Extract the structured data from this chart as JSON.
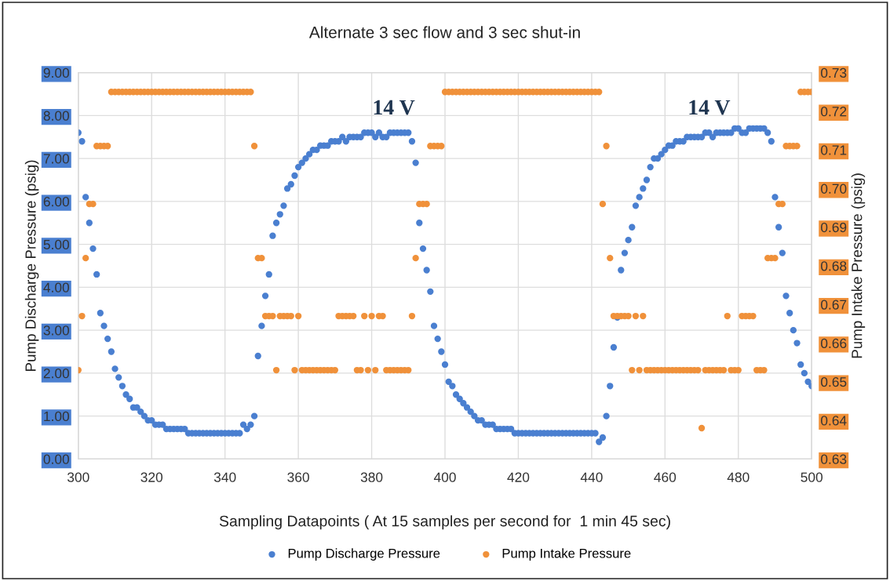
{
  "chart_data": {
    "type": "scatter",
    "title": "Alternate 3 sec flow and 3 sec shut-in",
    "xlabel": "Sampling Datapoints ( At 15 samples per second for  1 min 45 sec)",
    "ylabel": "Pump Discharge Pressure (psig)",
    "y2label": "Pump Intake Pressure (psig)",
    "x": [
      300,
      301,
      302,
      303,
      304,
      305,
      306,
      307,
      308,
      309,
      310,
      311,
      312,
      313,
      314,
      315,
      316,
      317,
      318,
      319,
      320,
      321,
      322,
      323,
      324,
      325,
      326,
      327,
      328,
      329,
      330,
      331,
      332,
      333,
      334,
      335,
      336,
      337,
      338,
      339,
      340,
      341,
      342,
      343,
      344,
      345,
      346,
      347,
      348,
      349,
      350,
      351,
      352,
      353,
      354,
      355,
      356,
      357,
      358,
      359,
      360,
      361,
      362,
      363,
      364,
      365,
      366,
      367,
      368,
      369,
      370,
      371,
      372,
      373,
      374,
      375,
      376,
      377,
      378,
      379,
      380,
      381,
      382,
      383,
      384,
      385,
      386,
      387,
      388,
      389,
      390,
      391,
      392,
      393,
      394,
      395,
      396,
      397,
      398,
      399,
      400,
      401,
      402,
      403,
      404,
      405,
      406,
      407,
      408,
      409,
      410,
      411,
      412,
      413,
      414,
      415,
      416,
      417,
      418,
      419,
      420,
      421,
      422,
      423,
      424,
      425,
      426,
      427,
      428,
      429,
      430,
      431,
      432,
      433,
      434,
      435,
      436,
      437,
      438,
      439,
      440,
      441,
      442,
      443,
      444,
      445,
      446,
      447,
      448,
      449,
      450,
      451,
      452,
      453,
      454,
      455,
      456,
      457,
      458,
      459,
      460,
      461,
      462,
      463,
      464,
      465,
      466,
      467,
      468,
      469,
      470,
      471,
      472,
      473,
      474,
      475,
      476,
      477,
      478,
      479,
      480,
      481,
      482,
      483,
      484,
      485,
      486,
      487,
      488,
      489,
      490,
      491,
      492,
      493,
      494,
      495,
      496,
      497,
      498,
      499,
      500
    ],
    "series": [
      {
        "name": "Pump Discharge Pressure",
        "color": "#4a7fd0",
        "values": [
          7.6,
          7.4,
          6.1,
          5.5,
          4.9,
          4.3,
          3.4,
          3.1,
          2.8,
          2.5,
          2.1,
          1.9,
          1.7,
          1.5,
          1.4,
          1.2,
          1.2,
          1.1,
          1.0,
          0.9,
          0.9,
          0.8,
          0.8,
          0.8,
          0.7,
          0.7,
          0.7,
          0.7,
          0.7,
          0.7,
          0.6,
          0.6,
          0.6,
          0.6,
          0.6,
          0.6,
          0.6,
          0.6,
          0.6,
          0.6,
          0.6,
          0.6,
          0.6,
          0.6,
          0.6,
          0.8,
          0.7,
          0.8,
          1.0,
          2.4,
          3.1,
          3.8,
          4.3,
          5.2,
          5.5,
          5.7,
          5.9,
          6.3,
          6.4,
          6.6,
          6.8,
          6.9,
          7.0,
          7.1,
          7.2,
          7.2,
          7.3,
          7.3,
          7.3,
          7.4,
          7.4,
          7.4,
          7.5,
          7.4,
          7.5,
          7.5,
          7.5,
          7.5,
          7.6,
          7.6,
          7.6,
          7.5,
          7.6,
          7.5,
          7.5,
          7.6,
          7.6,
          7.6,
          7.6,
          7.6,
          7.6,
          7.4,
          6.9,
          5.5,
          4.9,
          4.4,
          3.9,
          3.1,
          2.8,
          2.5,
          2.2,
          1.8,
          1.7,
          1.5,
          1.4,
          1.3,
          1.2,
          1.1,
          1.0,
          0.9,
          0.9,
          0.8,
          0.8,
          0.8,
          0.7,
          0.7,
          0.7,
          0.7,
          0.7,
          0.6,
          0.6,
          0.6,
          0.6,
          0.6,
          0.6,
          0.6,
          0.6,
          0.6,
          0.6,
          0.6,
          0.6,
          0.6,
          0.6,
          0.6,
          0.6,
          0.6,
          0.6,
          0.6,
          0.6,
          0.6,
          0.6,
          0.6,
          0.4,
          0.5,
          1.0,
          1.7,
          2.6,
          3.3,
          4.4,
          4.8,
          5.1,
          5.4,
          5.9,
          6.1,
          6.3,
          6.5,
          6.8,
          7.0,
          7.0,
          7.1,
          7.2,
          7.3,
          7.3,
          7.4,
          7.4,
          7.4,
          7.5,
          7.5,
          7.5,
          7.5,
          7.5,
          7.6,
          7.6,
          7.5,
          7.6,
          7.6,
          7.6,
          7.6,
          7.6,
          7.7,
          7.7,
          7.6,
          7.6,
          7.7,
          7.7,
          7.7,
          7.7,
          7.7,
          7.6,
          7.4,
          6.1,
          5.4,
          4.8,
          3.8,
          3.4,
          3.0,
          2.7,
          2.2,
          2.0,
          1.8,
          1.7
        ]
      },
      {
        "name": "Pump Intake Pressure",
        "color": "#f0913a",
        "axis": "y2",
        "values": [
          0.653,
          0.667,
          0.682,
          0.696,
          0.696,
          0.711,
          0.711,
          0.711,
          0.711,
          0.725,
          0.725,
          0.725,
          0.725,
          0.725,
          0.725,
          0.725,
          0.725,
          0.725,
          0.725,
          0.725,
          0.725,
          0.725,
          0.725,
          0.725,
          0.725,
          0.725,
          0.725,
          0.725,
          0.725,
          0.725,
          0.725,
          0.725,
          0.725,
          0.725,
          0.725,
          0.725,
          0.725,
          0.725,
          0.725,
          0.725,
          0.725,
          0.725,
          0.725,
          0.725,
          0.725,
          0.725,
          0.725,
          0.725,
          0.711,
          0.682,
          0.682,
          0.667,
          0.667,
          0.667,
          0.653,
          0.667,
          0.667,
          0.667,
          0.667,
          0.653,
          0.667,
          0.653,
          0.653,
          0.653,
          0.653,
          0.653,
          0.653,
          0.653,
          0.653,
          0.653,
          0.653,
          0.667,
          0.667,
          0.667,
          0.667,
          0.667,
          0.653,
          0.653,
          0.667,
          0.653,
          0.667,
          0.653,
          0.667,
          0.667,
          0.653,
          0.653,
          0.653,
          0.653,
          0.653,
          0.653,
          0.653,
          0.667,
          0.682,
          0.696,
          0.696,
          0.696,
          0.711,
          0.711,
          0.711,
          0.711,
          0.725,
          0.725,
          0.725,
          0.725,
          0.725,
          0.725,
          0.725,
          0.725,
          0.725,
          0.725,
          0.725,
          0.725,
          0.725,
          0.725,
          0.725,
          0.725,
          0.725,
          0.725,
          0.725,
          0.725,
          0.725,
          0.725,
          0.725,
          0.725,
          0.725,
          0.725,
          0.725,
          0.725,
          0.725,
          0.725,
          0.725,
          0.725,
          0.725,
          0.725,
          0.725,
          0.725,
          0.725,
          0.725,
          0.725,
          0.725,
          0.725,
          0.725,
          0.725,
          0.696,
          0.711,
          0.682,
          0.667,
          0.667,
          0.667,
          0.667,
          0.667,
          0.653,
          0.667,
          0.653,
          0.667,
          0.653,
          0.653,
          0.653,
          0.653,
          0.653,
          0.653,
          0.653,
          0.653,
          0.653,
          0.653,
          0.653,
          0.653,
          0.653,
          0.653,
          0.653,
          0.638,
          0.653,
          0.653,
          0.653,
          0.653,
          0.653,
          0.653,
          0.667,
          0.653,
          0.653,
          0.653,
          0.667,
          0.667,
          0.667,
          0.667,
          0.653,
          0.653,
          0.653,
          0.682,
          0.682,
          0.682,
          0.696,
          0.696,
          0.711,
          0.711,
          0.711,
          0.711,
          0.725,
          0.725,
          0.725,
          0.725
        ]
      }
    ],
    "xlim": [
      300,
      500
    ],
    "xticks": [
      300,
      320,
      340,
      360,
      380,
      400,
      420,
      440,
      460,
      480,
      500
    ],
    "ylim": [
      0,
      9
    ],
    "yticks": [
      {
        "value": 0,
        "label": "0.00"
      },
      {
        "value": 1,
        "label": "1.00"
      },
      {
        "value": 2,
        "label": "2.00"
      },
      {
        "value": 3,
        "label": "3.00"
      },
      {
        "value": 4,
        "label": "4.00"
      },
      {
        "value": 5,
        "label": "5.00"
      },
      {
        "value": 6,
        "label": "6.00"
      },
      {
        "value": 7,
        "label": "7.00"
      },
      {
        "value": 8,
        "label": "8.00"
      },
      {
        "value": 9,
        "label": "9.00"
      }
    ],
    "y2lim": [
      0.63,
      0.73
    ],
    "y2ticks": [
      {
        "value": 0.63,
        "label": "0.63"
      },
      {
        "value": 0.64,
        "label": "0.64"
      },
      {
        "value": 0.65,
        "label": "0.65"
      },
      {
        "value": 0.66,
        "label": "0.66"
      },
      {
        "value": 0.67,
        "label": "0.67"
      },
      {
        "value": 0.68,
        "label": "0.68"
      },
      {
        "value": 0.69,
        "label": "0.69"
      },
      {
        "value": 0.7,
        "label": "0.70"
      },
      {
        "value": 0.71,
        "label": "0.71"
      },
      {
        "value": 0.72,
        "label": "0.72"
      },
      {
        "value": 0.73,
        "label": "0.73"
      }
    ],
    "annotations": [
      "14 V",
      "14 V"
    ],
    "grid": true,
    "legend": "bottom",
    "marker": "circle"
  }
}
